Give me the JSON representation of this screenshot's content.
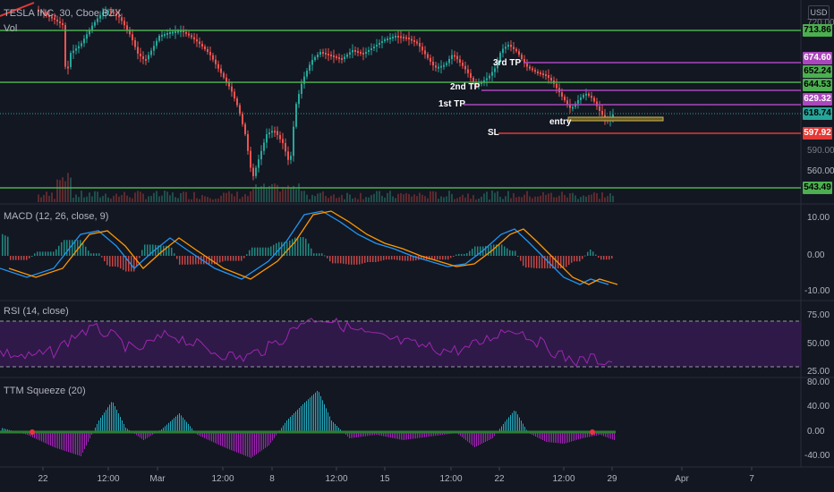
{
  "header": {
    "symbol": "TESLA INC, 30, Cboe BZX",
    "volume_label": "Vol",
    "currency": "USD"
  },
  "price_labels": {
    "l713": "713.86",
    "l674": "674.60",
    "l652": "652.24",
    "l644": "644.53",
    "l629": "629.32",
    "l618": "618.74",
    "l597": "597.92",
    "l543": "543.49"
  },
  "price_axis": {
    "t720": "720.00",
    "t590": "590.00",
    "t560": "560.00"
  },
  "annotations": {
    "tp3": "3rd TP",
    "tp2": "2nd TP",
    "tp1": "1st TP",
    "entry": "entry",
    "sl": "SL"
  },
  "indicators": {
    "macd": {
      "title": "MACD (12, 26, close, 9)",
      "t1": "10.00",
      "t2": "0.00",
      "t3": "-10.00"
    },
    "rsi": {
      "title": "RSI (14, close)",
      "t1": "75.00",
      "t2": "50.00",
      "t3": "25.00"
    },
    "ttm": {
      "title": "TTM Squeeze (20)",
      "t1": "80.00",
      "t2": "40.00",
      "t3": "0.00",
      "t4": "-40.00"
    }
  },
  "time_axis": {
    "d22": "22",
    "t1200a": "12:00",
    "mar": "Mar",
    "t1200b": "12:00",
    "d8": "8",
    "t1200c": "12:00",
    "d15": "15",
    "t1200d": "12:00",
    "d22b": "22",
    "t1200e": "12:00",
    "d29": "29",
    "apr": "Apr",
    "d7": "7"
  },
  "colors": {
    "up": "#26a69a",
    "down": "#ef5350",
    "green_line": "#4caf50",
    "purple_line": "#ab47bc",
    "sl_line": "#e53935",
    "entry_box": "#c9b458",
    "rsi_band": "#4a1d6a"
  }
}
